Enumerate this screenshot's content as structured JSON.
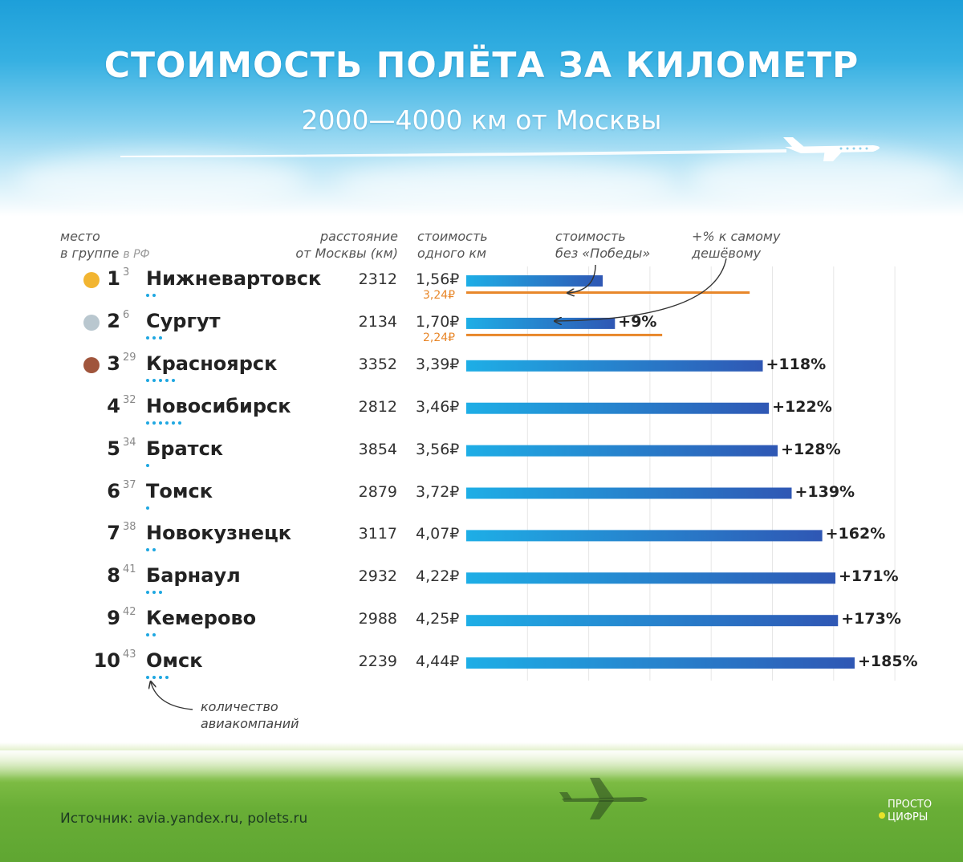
{
  "title": "СТОИМОСТЬ ПОЛЁТА ЗА КИЛОМЕТР",
  "subtitle": "2000—4000 км от Москвы",
  "headers": {
    "place_line1": "место",
    "place_group": "в группе",
    "place_rf": "в РФ",
    "distance_line1": "расстояние",
    "distance_line2": "от Москвы (км)",
    "cost_line1": "стоимость",
    "cost_line2": "одного км",
    "nopobeda_line1": "стоимость",
    "nopobeda_line2": "без «Победы»",
    "pct_line1": "+% к самому",
    "pct_line2": "дешёвому"
  },
  "legend_airlines_line1": "количество",
  "legend_airlines_line2": "авиакомпаний",
  "source": "Источник: avia.yandex.ru, polets.ru",
  "logo_line1": "ПРОСТО",
  "logo_line2": "ЦИФРЫ",
  "colors": {
    "bar_start": "#1eaee6",
    "bar_end": "#2f57b4",
    "orange": "#e8872a",
    "dot": "#1ea7e1",
    "gold": "#f2b531",
    "silver": "#b9c7cf",
    "bronze": "#a0553c"
  },
  "rows": [
    {
      "rank": "1",
      "rank_rf": "3",
      "city": "Нижневартовск",
      "airlines": 2,
      "distance": "2312",
      "cost_label": "1,56₽",
      "cost_nopobeda_label": "3,24₽",
      "pct": "",
      "medal": "gold"
    },
    {
      "rank": "2",
      "rank_rf": "6",
      "city": "Сургут",
      "airlines": 3,
      "distance": "2134",
      "cost_label": "1,70₽",
      "cost_nopobeda_label": "2,24₽",
      "pct": "+9%",
      "medal": "silver"
    },
    {
      "rank": "3",
      "rank_rf": "29",
      "city": "Красноярск",
      "airlines": 5,
      "distance": "3352",
      "cost_label": "3,39₽",
      "cost_nopobeda_label": "",
      "pct": "+118%",
      "medal": "bronze"
    },
    {
      "rank": "4",
      "rank_rf": "32",
      "city": "Новосибирск",
      "airlines": 6,
      "distance": "2812",
      "cost_label": "3,46₽",
      "cost_nopobeda_label": "",
      "pct": "+122%",
      "medal": ""
    },
    {
      "rank": "5",
      "rank_rf": "34",
      "city": "Братск",
      "airlines": 1,
      "distance": "3854",
      "cost_label": "3,56₽",
      "cost_nopobeda_label": "",
      "pct": "+128%",
      "medal": ""
    },
    {
      "rank": "6",
      "rank_rf": "37",
      "city": "Томск",
      "airlines": 1,
      "distance": "2879",
      "cost_label": "3,72₽",
      "cost_nopobeda_label": "",
      "pct": "+139%",
      "medal": ""
    },
    {
      "rank": "7",
      "rank_rf": "38",
      "city": "Новокузнецк",
      "airlines": 2,
      "distance": "3117",
      "cost_label": "4,07₽",
      "cost_nopobeda_label": "",
      "pct": "+162%",
      "medal": ""
    },
    {
      "rank": "8",
      "rank_rf": "41",
      "city": "Барнаул",
      "airlines": 3,
      "distance": "2932",
      "cost_label": "4,22₽",
      "cost_nopobeda_label": "",
      "pct": "+171%",
      "medal": ""
    },
    {
      "rank": "9",
      "rank_rf": "42",
      "city": "Кемерово",
      "airlines": 2,
      "distance": "2988",
      "cost_label": "4,25₽",
      "cost_nopobeda_label": "",
      "pct": "+173%",
      "medal": ""
    },
    {
      "rank": "10",
      "rank_rf": "43",
      "city": "Омск",
      "airlines": 4,
      "distance": "2239",
      "cost_label": "4,44₽",
      "cost_nopobeda_label": "",
      "pct": "+185%",
      "medal": ""
    }
  ],
  "chart_data": {
    "type": "bar",
    "orientation": "horizontal",
    "title": "СТОИМОСТЬ ПОЛЁТА ЗА КИЛОМЕТР",
    "subtitle": "2000—4000 км от Москвы",
    "categories": [
      "Нижневартовск",
      "Сургут",
      "Красноярск",
      "Новосибирск",
      "Братск",
      "Томск",
      "Новокузнецк",
      "Барнаул",
      "Кемерово",
      "Омск"
    ],
    "series": [
      {
        "name": "стоимость одного км",
        "values": [
          1.56,
          1.7,
          3.39,
          3.46,
          3.56,
          3.72,
          4.07,
          4.22,
          4.25,
          4.44
        ]
      },
      {
        "name": "стоимость без «Победы»",
        "values": [
          3.24,
          2.24,
          null,
          null,
          null,
          null,
          null,
          null,
          null,
          null
        ]
      }
    ],
    "xlim": [
      0,
      7
    ],
    "grid": true
  }
}
